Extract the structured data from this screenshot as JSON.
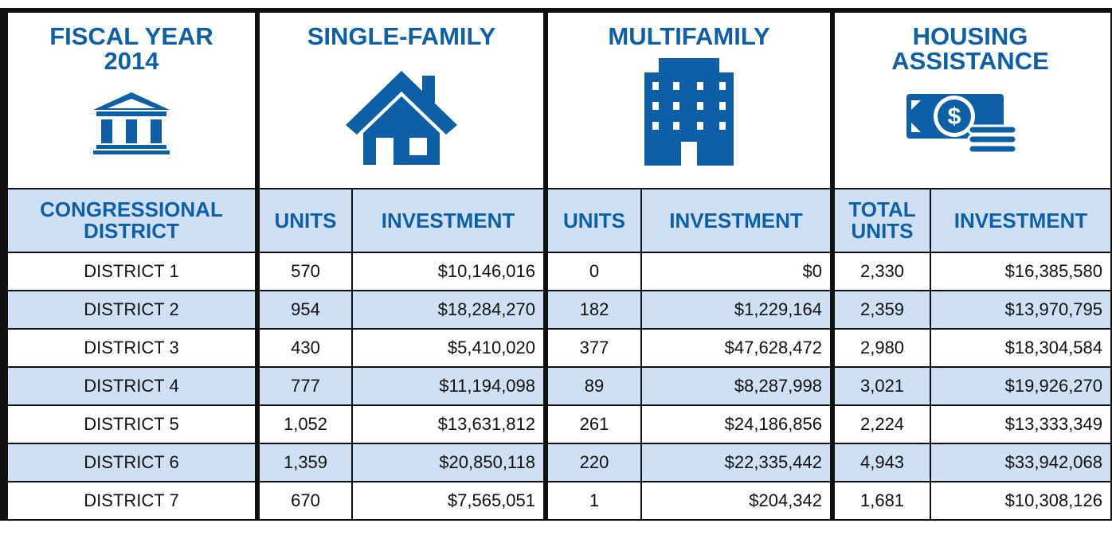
{
  "header": {
    "groups": [
      "FISCAL YEAR 2014",
      "SINGLE-FAMILY",
      "MULTIFAMILY",
      "HOUSING ASSISTANCE"
    ]
  },
  "table": {
    "columns": [
      "CONGRESSIONAL DISTRICT",
      "UNITS",
      "INVESTMENT",
      "UNITS",
      "INVESTMENT",
      "TOTAL UNITS",
      "INVESTMENT"
    ],
    "rows": [
      [
        "DISTRICT 1",
        "570",
        "$10,146,016",
        "0",
        "$0",
        "2,330",
        "$16,385,580"
      ],
      [
        "DISTRICT 2",
        "954",
        "$18,284,270",
        "182",
        "$1,229,164",
        "2,359",
        "$13,970,795"
      ],
      [
        "DISTRICT 3",
        "430",
        "$5,410,020",
        "377",
        "$47,628,472",
        "2,980",
        "$18,304,584"
      ],
      [
        "DISTRICT 4",
        "777",
        "$11,194,098",
        "89",
        "$8,287,998",
        "3,021",
        "$19,926,270"
      ],
      [
        "DISTRICT 5",
        "1,052",
        "$13,631,812",
        "261",
        "$24,186,856",
        "2,224",
        "$13,333,349"
      ],
      [
        "DISTRICT 6",
        "1,359",
        "$20,850,118",
        "220",
        "$22,335,442",
        "4,943",
        "$33,942,068"
      ],
      [
        "DISTRICT 7",
        "670",
        "$7,565,051",
        "1",
        "$204,342",
        "1,681",
        "$10,308,126"
      ]
    ]
  }
}
